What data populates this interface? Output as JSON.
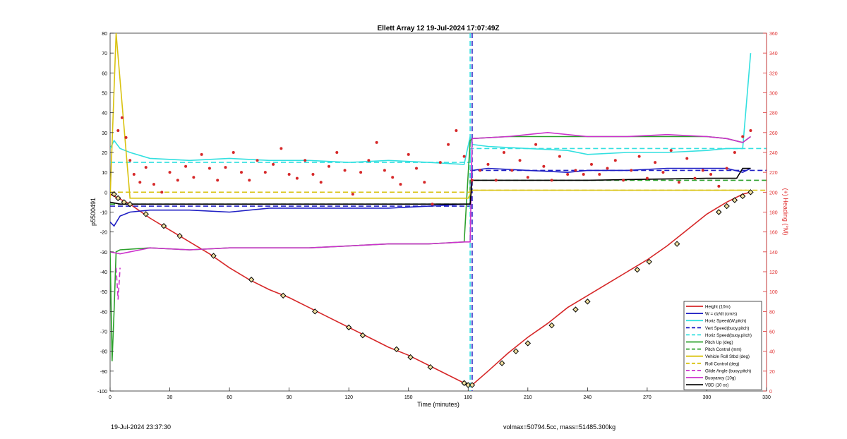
{
  "chart_data": {
    "type": "line",
    "title": "Ellett Array 12 19-Jul-2024 17:07:49Z",
    "xlabel": "Time (minutes)",
    "ylabel_left": "p5500491",
    "ylabel_right": "(+) Heading (°M)",
    "xlim": [
      0,
      330
    ],
    "ylim_left": [
      -100,
      80
    ],
    "ylim_right": [
      0,
      360
    ],
    "xticks": [
      0,
      30,
      60,
      90,
      120,
      150,
      180,
      210,
      240,
      270,
      300,
      330
    ],
    "yticks_left": [
      80,
      70,
      60,
      50,
      40,
      30,
      20,
      10,
      0,
      -10,
      -20,
      -30,
      -40,
      -50,
      -60,
      -70,
      -80,
      -90,
      -100
    ],
    "yticks_right": [
      360,
      340,
      320,
      300,
      280,
      260,
      240,
      220,
      200,
      180,
      160,
      140,
      120,
      100,
      80,
      60,
      40,
      20,
      0
    ],
    "grid": false,
    "legend_position": "bottom-right",
    "inflection_time": 181,
    "series": [
      {
        "name": "Height (10m)",
        "color": "#d62728",
        "style": "solid",
        "x": [
          0,
          10,
          20,
          30,
          40,
          50,
          60,
          70,
          80,
          90,
          100,
          110,
          120,
          130,
          140,
          150,
          160,
          170,
          178,
          182,
          190,
          200,
          210,
          220,
          230,
          240,
          250,
          260,
          270,
          280,
          290,
          300,
          310,
          318,
          322
        ],
        "y": [
          -1,
          -6,
          -13,
          -19,
          -25,
          -31,
          -38,
          -44,
          -49,
          -53,
          -58,
          -63,
          -68,
          -73,
          -78,
          -82,
          -87,
          -92,
          -96,
          -97,
          -90,
          -81,
          -73,
          -66,
          -58,
          -52,
          -46,
          -40,
          -34,
          -27,
          -19,
          -11,
          -5,
          -1,
          0
        ]
      },
      {
        "name": "W = dz/dt (cm/s)",
        "color": "#1f1fc4",
        "style": "solid",
        "x": [
          0,
          2,
          5,
          10,
          20,
          40,
          60,
          80,
          100,
          120,
          140,
          160,
          178,
          181,
          182,
          190,
          210,
          230,
          240,
          260,
          280,
          300,
          310,
          318,
          322
        ],
        "y": [
          -15,
          -17,
          -12,
          -10,
          -9,
          -9,
          -10,
          -8,
          -8,
          -8,
          -8,
          -7,
          -6,
          -6,
          11,
          12,
          11,
          10,
          11,
          11,
          12,
          12,
          12,
          10,
          12
        ]
      },
      {
        "name": "Horiz Speed(W,pitch)",
        "color": "#33e0e0",
        "style": "solid",
        "x": [
          0,
          2,
          5,
          10,
          20,
          40,
          60,
          80,
          100,
          120,
          140,
          160,
          178,
          181,
          182,
          190,
          210,
          230,
          240,
          260,
          280,
          300,
          310,
          318,
          322
        ],
        "y": [
          22,
          26,
          22,
          20,
          17,
          16,
          17,
          16,
          16,
          15,
          16,
          15,
          14,
          28,
          24,
          23,
          22,
          21,
          19,
          20,
          20,
          21,
          22,
          22,
          70
        ]
      },
      {
        "name": "Vert Speed(buoy,pitch)",
        "color": "#1f1fc4",
        "style": "dashed",
        "x": [
          0,
          181,
          181,
          330
        ],
        "y": [
          -7,
          -7,
          11,
          11
        ],
        "vline": 182
      },
      {
        "name": "Horiz Speed(buoy,pitch)",
        "color": "#33e0e0",
        "style": "dashed",
        "x": [
          0,
          181,
          181,
          330
        ],
        "y": [
          15,
          15,
          22,
          22
        ],
        "vline": 181
      },
      {
        "name": "Pitch Up (deg)",
        "color": "#2ca02c",
        "style": "solid",
        "x": [
          0,
          1,
          2,
          3,
          5,
          20,
          40,
          60,
          80,
          100,
          120,
          140,
          160,
          178,
          181,
          182,
          200,
          220,
          240,
          260,
          280,
          300,
          310,
          318,
          322
        ],
        "y": [
          -30,
          -85,
          -60,
          -30,
          -29,
          -28,
          -29,
          -28,
          -28,
          -28,
          -27,
          -26,
          -26,
          -25,
          26,
          27,
          28,
          28,
          28,
          28,
          28,
          28,
          27,
          25,
          28
        ]
      },
      {
        "name": "Pitch Control (mm)",
        "color": "#2ca02c",
        "style": "dashed",
        "x": [
          0,
          181,
          181,
          330
        ],
        "y": [
          -6,
          -6,
          6,
          6
        ]
      },
      {
        "name": "Vehicle Roll Stbd (deg)",
        "color": "#d9c20f",
        "style": "solid",
        "x": [
          0,
          3,
          10,
          20,
          40,
          60,
          80,
          100,
          120,
          140,
          160,
          180,
          182,
          200,
          220,
          240,
          260,
          280,
          300,
          320
        ],
        "y": [
          -3,
          80,
          -3,
          -3,
          -3,
          -3,
          -3,
          -3,
          -3,
          -3,
          -3,
          -3,
          1,
          1,
          1,
          1,
          1,
          1,
          1,
          1
        ]
      },
      {
        "name": "Roll Control (deg)",
        "color": "#d9c20f",
        "style": "dashed",
        "x": [
          0,
          181,
          181,
          330
        ],
        "y": [
          0,
          0,
          1,
          1
        ]
      },
      {
        "name": "Glide Angle (buoy,pitch)",
        "color": "#cc33cc",
        "style": "dashed",
        "x": [
          3,
          4,
          5
        ],
        "y": [
          -38,
          -54,
          -38
        ]
      },
      {
        "name": "Buoyancy (10g)",
        "color": "#cc33cc",
        "style": "solid",
        "x": [
          0,
          5,
          20,
          40,
          60,
          80,
          100,
          120,
          140,
          160,
          178,
          181,
          182,
          200,
          220,
          240,
          260,
          280,
          300,
          310,
          318,
          322
        ],
        "y": [
          -30,
          -31,
          -28,
          -29,
          -28,
          -28,
          -28,
          -27,
          -26,
          -26,
          -25,
          -25,
          27,
          28,
          30,
          28,
          28,
          29,
          28,
          27,
          25,
          28
        ]
      },
      {
        "name": "VBD (10 cc)",
        "color": "#000000",
        "style": "solid",
        "x": [
          0,
          5,
          180,
          181,
          182,
          200,
          240,
          300,
          315,
          318,
          322
        ],
        "y": [
          -5,
          -6,
          -6,
          -6,
          6,
          6,
          6,
          7,
          7,
          12,
          12
        ]
      }
    ],
    "heading_points": {
      "name": "Heading",
      "axis": "right",
      "color": "#d62728",
      "x": [
        4,
        6,
        8,
        10,
        12,
        15,
        18,
        22,
        26,
        30,
        34,
        38,
        42,
        46,
        50,
        54,
        58,
        62,
        66,
        70,
        74,
        78,
        82,
        86,
        90,
        94,
        98,
        102,
        106,
        110,
        114,
        118,
        122,
        126,
        130,
        134,
        138,
        142,
        146,
        150,
        154,
        158,
        162,
        166,
        170,
        174,
        178,
        182,
        186,
        190,
        194,
        198,
        202,
        206,
        210,
        214,
        218,
        222,
        226,
        230,
        234,
        238,
        242,
        246,
        250,
        254,
        258,
        262,
        266,
        270,
        274,
        278,
        282,
        286,
        290,
        294,
        298,
        302,
        306,
        310,
        314,
        318,
        322
      ],
      "y": [
        262,
        275,
        255,
        232,
        218,
        210,
        225,
        208,
        200,
        220,
        212,
        226,
        215,
        238,
        224,
        212,
        225,
        240,
        220,
        212,
        232,
        220,
        228,
        244,
        218,
        214,
        232,
        218,
        210,
        226,
        240,
        222,
        198,
        220,
        232,
        250,
        222,
        215,
        208,
        238,
        224,
        210,
        188,
        230,
        248,
        262,
        236,
        212,
        222,
        228,
        212,
        240,
        222,
        232,
        215,
        248,
        226,
        212,
        236,
        218,
        222,
        218,
        228,
        218,
        224,
        232,
        212,
        222,
        236,
        214,
        230,
        220,
        242,
        210,
        234,
        214,
        222,
        218,
        206,
        224,
        240,
        256,
        262
      ]
    },
    "markers": {
      "name": "Height markers",
      "shape": "diamond",
      "x": [
        2,
        4,
        7,
        10,
        18,
        27,
        35,
        52,
        71,
        87,
        103,
        120,
        127,
        144,
        151,
        161,
        178,
        180,
        182,
        197,
        204,
        210,
        222,
        234,
        240,
        265,
        271,
        285,
        306,
        310,
        314,
        318,
        322
      ],
      "y": [
        -1,
        -3,
        -5,
        -6,
        -11,
        -17,
        -22,
        -32,
        -44,
        -52,
        -60,
        -68,
        -72,
        -79,
        -83,
        -88,
        -96,
        -97,
        -97,
        -86,
        -80,
        -76,
        -67,
        -59,
        -55,
        -39,
        -35,
        -26,
        -10,
        -7,
        -4,
        -2,
        0
      ]
    }
  },
  "footer": {
    "left": "19-Jul-2024 23:37:30",
    "right": "volmax=50794.5cc, mass=51485.300kg"
  }
}
